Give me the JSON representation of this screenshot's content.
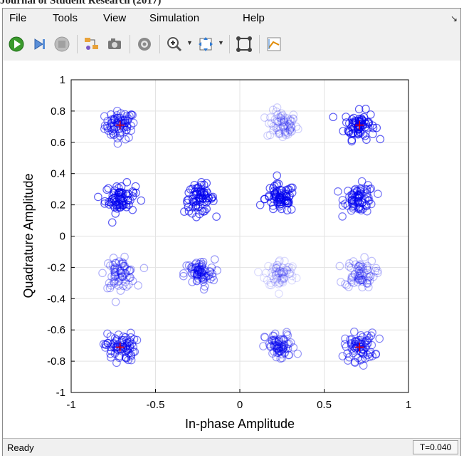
{
  "caption": "Journal of Student Research (2017)",
  "menu": [
    "File",
    "Tools",
    "View",
    "Simulation",
    "Help"
  ],
  "toolbar": {
    "icons": [
      "run-icon",
      "step-forward-icon",
      "stop-icon",
      "highlight-blocks-icon",
      "snapshot-icon",
      "settings-icon",
      "zoom-in-icon",
      "fit-view-icon",
      "constellation-icon",
      "measurements-icon"
    ]
  },
  "status": {
    "text": "Ready",
    "time": "T=0.040"
  },
  "colors": {
    "marker": "#0000ee",
    "reference": "#e00000",
    "grid": "#e3e3e3",
    "axis": "#000000"
  },
  "chart_data": {
    "type": "scatter",
    "title": "",
    "xlabel": "In-phase Amplitude",
    "ylabel": "Quadrature Amplitude",
    "xlim": [
      -1,
      1
    ],
    "ylim": [
      -1,
      1
    ],
    "xticks": [
      -1,
      -0.5,
      0,
      0.5,
      1
    ],
    "xtick_labels": [
      "-1",
      "-0.5",
      "0",
      "0.5",
      "1"
    ],
    "yticks": [
      1,
      0.8,
      0.6,
      0.4,
      0.2,
      0,
      -0.2,
      -0.4,
      -0.6,
      -0.8,
      -1
    ],
    "ytick_labels": [
      "1",
      "0.8",
      "0.6",
      "0.4",
      "0.2",
      "0",
      "-0.2",
      "-0.4",
      "-0.6",
      "-0.8",
      "-1"
    ],
    "grid": true,
    "marker": "circle",
    "clusters": [
      {
        "x": -0.71,
        "y": 0.71,
        "intensity": 0.75
      },
      {
        "x": 0.25,
        "y": 0.71,
        "intensity": 0.18
      },
      {
        "x": 0.71,
        "y": 0.71,
        "intensity": 1.0
      },
      {
        "x": -0.71,
        "y": 0.24,
        "intensity": 1.0
      },
      {
        "x": -0.24,
        "y": 0.24,
        "intensity": 1.0
      },
      {
        "x": 0.24,
        "y": 0.24,
        "intensity": 1.0
      },
      {
        "x": 0.71,
        "y": 0.24,
        "intensity": 0.85
      },
      {
        "x": -0.71,
        "y": -0.24,
        "intensity": 0.4
      },
      {
        "x": -0.24,
        "y": -0.24,
        "intensity": 0.6
      },
      {
        "x": 0.24,
        "y": -0.24,
        "intensity": 0.1
      },
      {
        "x": 0.71,
        "y": -0.24,
        "intensity": 0.3
      },
      {
        "x": -0.71,
        "y": -0.71,
        "intensity": 0.8
      },
      {
        "x": 0.24,
        "y": -0.71,
        "intensity": 0.55
      },
      {
        "x": 0.71,
        "y": -0.71,
        "intensity": 0.75
      }
    ],
    "cluster_spread": 0.045,
    "points_per_cluster": 70,
    "reference_points": [
      {
        "x": -0.71,
        "y": 0.71
      },
      {
        "x": 0.71,
        "y": 0.71
      },
      {
        "x": -0.71,
        "y": -0.71
      },
      {
        "x": 0.71,
        "y": -0.71
      }
    ]
  }
}
